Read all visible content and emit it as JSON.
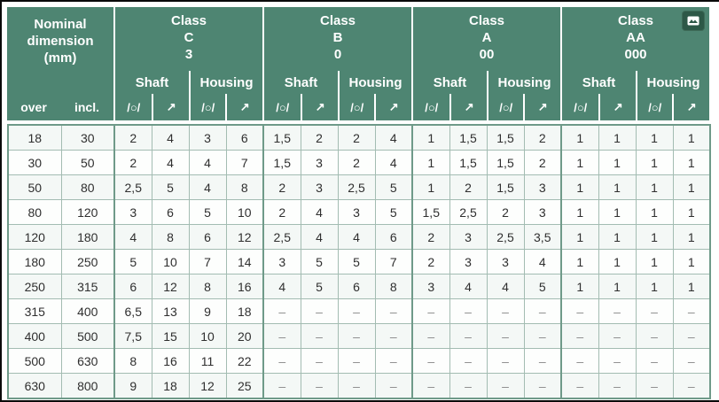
{
  "colors": {
    "header_bg": "#4e8572",
    "header_text": "#ffffff",
    "grid_border_light": "#a3bcb2",
    "grid_border_dark": "#6f9a89",
    "frame_line": "#0a0a0a",
    "badge_bg": "#2d5847",
    "data_text": "#2f2f2f"
  },
  "nominal": {
    "lines": [
      "Nominal",
      "dimension",
      "(mm)"
    ],
    "over": "over",
    "incl": "incl."
  },
  "classes": [
    {
      "label": "Class",
      "code": "C",
      "grade": "3"
    },
    {
      "label": "Class",
      "code": "B",
      "grade": "0"
    },
    {
      "label": "Class",
      "code": "A",
      "grade": "00"
    },
    {
      "label": "Class",
      "code": "AA",
      "grade": "000"
    }
  ],
  "labels": {
    "shaft": "Shaft",
    "housing": "Housing"
  },
  "symbols": {
    "circularity": "/○/",
    "runout": "↗"
  },
  "corner_icon": "image-icon",
  "rows": [
    {
      "over": "18",
      "incl": "30",
      "values": [
        "2",
        "4",
        "3",
        "6",
        "1,5",
        "2",
        "2",
        "4",
        "1",
        "1,5",
        "1,5",
        "2",
        "1",
        "1",
        "1",
        "1"
      ]
    },
    {
      "over": "30",
      "incl": "50",
      "values": [
        "2",
        "4",
        "4",
        "7",
        "1,5",
        "3",
        "2",
        "4",
        "1",
        "1,5",
        "1,5",
        "2",
        "1",
        "1",
        "1",
        "1"
      ]
    },
    {
      "over": "50",
      "incl": "80",
      "values": [
        "2,5",
        "5",
        "4",
        "8",
        "2",
        "3",
        "2,5",
        "5",
        "1",
        "2",
        "1,5",
        "3",
        "1",
        "1",
        "1",
        "1"
      ]
    },
    {
      "over": "80",
      "incl": "120",
      "values": [
        "3",
        "6",
        "5",
        "10",
        "2",
        "4",
        "3",
        "5",
        "1,5",
        "2,5",
        "2",
        "3",
        "1",
        "1",
        "1",
        "1"
      ]
    },
    {
      "over": "120",
      "incl": "180",
      "values": [
        "4",
        "8",
        "6",
        "12",
        "2,5",
        "4",
        "4",
        "6",
        "2",
        "3",
        "2,5",
        "3,5",
        "1",
        "1",
        "1",
        "1"
      ]
    },
    {
      "over": "180",
      "incl": "250",
      "values": [
        "5",
        "10",
        "7",
        "14",
        "3",
        "5",
        "5",
        "7",
        "2",
        "3",
        "3",
        "4",
        "1",
        "1",
        "1",
        "1"
      ]
    },
    {
      "over": "250",
      "incl": "315",
      "values": [
        "6",
        "12",
        "8",
        "16",
        "4",
        "5",
        "6",
        "8",
        "3",
        "4",
        "4",
        "5",
        "1",
        "1",
        "1",
        "1"
      ]
    },
    {
      "over": "315",
      "incl": "400",
      "values": [
        "6,5",
        "13",
        "9",
        "18",
        "–",
        "–",
        "–",
        "–",
        "–",
        "–",
        "–",
        "–",
        "–",
        "–",
        "–",
        "–"
      ]
    },
    {
      "over": "400",
      "incl": "500",
      "values": [
        "7,5",
        "15",
        "10",
        "20",
        "–",
        "–",
        "–",
        "–",
        "–",
        "–",
        "–",
        "–",
        "–",
        "–",
        "–",
        "–"
      ]
    },
    {
      "over": "500",
      "incl": "630",
      "values": [
        "8",
        "16",
        "11",
        "22",
        "–",
        "–",
        "–",
        "–",
        "–",
        "–",
        "–",
        "–",
        "–",
        "–",
        "–",
        "–"
      ]
    },
    {
      "over": "630",
      "incl": "800",
      "values": [
        "9",
        "18",
        "12",
        "25",
        "–",
        "–",
        "–",
        "–",
        "–",
        "–",
        "–",
        "–",
        "–",
        "–",
        "–",
        "–"
      ]
    }
  ]
}
